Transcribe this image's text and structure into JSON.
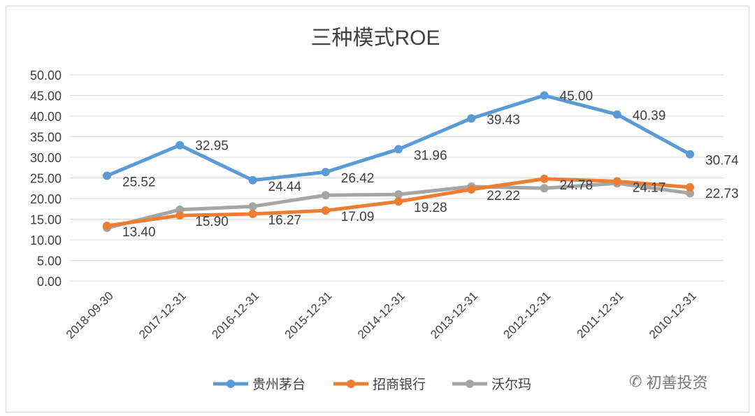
{
  "chart_data": {
    "type": "line",
    "title": "三种模式ROE",
    "categories": [
      "2018-09-30",
      "2017-12-31",
      "2016-12-31",
      "2015-12-31",
      "2014-12-31",
      "2013-12-31",
      "2012-12-31",
      "2011-12-31",
      "2010-12-31"
    ],
    "ylim": [
      0,
      50
    ],
    "yticks": [
      "0.00",
      "5.00",
      "10.00",
      "15.00",
      "20.00",
      "25.00",
      "30.00",
      "35.00",
      "40.00",
      "45.00",
      "50.00"
    ],
    "grid": true,
    "legend_position": "bottom",
    "series": [
      {
        "name": "贵州茅台",
        "color": "#5b9bd5",
        "values": [
          25.52,
          32.95,
          24.44,
          26.42,
          31.96,
          39.43,
          45.0,
          40.39,
          30.74
        ],
        "labels": [
          "25.52",
          "32.95",
          "24.44",
          "26.42",
          "31.96",
          "39.43",
          "45.00",
          "40.39",
          "30.74"
        ]
      },
      {
        "name": "招商银行",
        "color": "#ed7d31",
        "values": [
          13.4,
          15.9,
          16.27,
          17.09,
          19.28,
          22.22,
          24.78,
          24.17,
          22.73
        ],
        "labels": [
          "13.40",
          "15.90",
          "16.27",
          "17.09",
          "19.28",
          "22.22",
          "24.78",
          "24.17",
          "22.73"
        ]
      },
      {
        "name": "沃尔玛",
        "color": "#a5a5a5",
        "values": [
          12.9,
          17.3,
          18.1,
          20.8,
          21.0,
          22.9,
          22.5,
          23.7,
          21.3
        ]
      }
    ]
  },
  "watermark": "初善投资",
  "watermark_icon": "wechat-icon"
}
